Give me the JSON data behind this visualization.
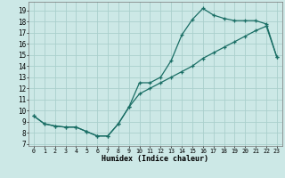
{
  "xlabel": "Humidex (Indice chaleur)",
  "bg_color": "#cce8e6",
  "grid_color": "#aacfcc",
  "line_color": "#1a6e65",
  "xlim": [
    -0.5,
    23.5
  ],
  "ylim": [
    6.8,
    19.8
  ],
  "xticks": [
    0,
    1,
    2,
    3,
    4,
    5,
    6,
    7,
    8,
    9,
    10,
    11,
    12,
    13,
    14,
    15,
    16,
    17,
    18,
    19,
    20,
    21,
    22,
    23
  ],
  "yticks": [
    7,
    8,
    9,
    10,
    11,
    12,
    13,
    14,
    15,
    16,
    17,
    18,
    19
  ],
  "line1_x": [
    0,
    1,
    2,
    3,
    4,
    5,
    6,
    7,
    8,
    9,
    10,
    11,
    12,
    13,
    14,
    15,
    16,
    17,
    18,
    19,
    20,
    21,
    22,
    23
  ],
  "line1_y": [
    9.5,
    8.8,
    8.6,
    8.5,
    8.5,
    8.1,
    7.7,
    7.7,
    8.8,
    10.3,
    12.5,
    12.5,
    13.0,
    14.5,
    16.8,
    18.2,
    19.2,
    18.6,
    18.3,
    18.1,
    18.1,
    18.1,
    17.8,
    14.8
  ],
  "line2_x": [
    0,
    1,
    2,
    3,
    4,
    5,
    6,
    7,
    8,
    9,
    10,
    11,
    12,
    13,
    14,
    15,
    16,
    17,
    18,
    19,
    20,
    21,
    22,
    23
  ],
  "line2_y": [
    9.5,
    8.8,
    8.6,
    8.5,
    8.5,
    8.1,
    7.7,
    7.7,
    8.8,
    10.3,
    11.5,
    12.0,
    12.5,
    13.0,
    13.5,
    14.0,
    14.7,
    15.2,
    15.7,
    16.2,
    16.7,
    17.2,
    17.6,
    14.8
  ]
}
